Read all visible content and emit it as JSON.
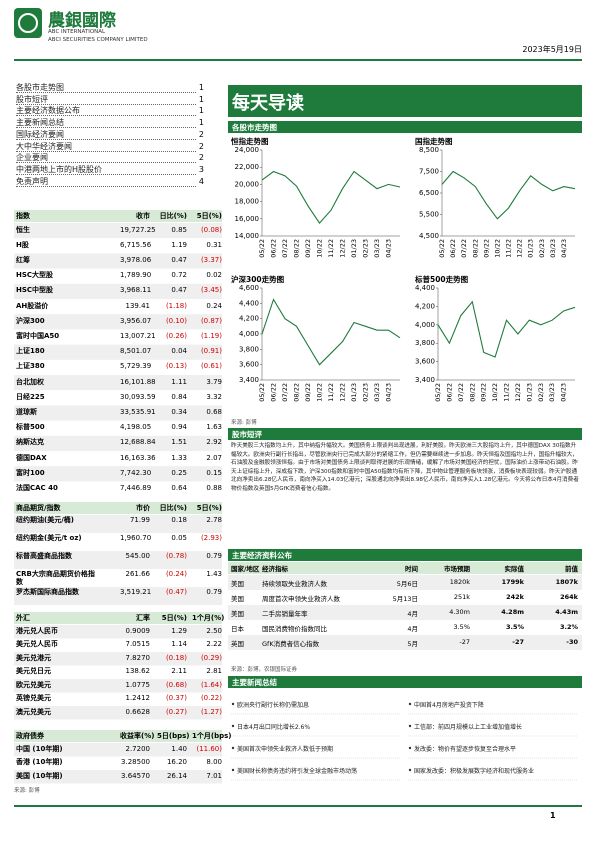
{
  "header": {
    "brand": "農銀國際",
    "brand_en1": "ABC INTERNATIONAL",
    "brand_en2": "ABCI SECURITIES COMPANY LIMITED",
    "date": "2023年5月19日"
  },
  "toc": [
    {
      "title": "各股市走势图",
      "page": 1
    },
    {
      "title": "股市短评",
      "page": 1
    },
    {
      "title": "主要经济数据公布",
      "page": 1
    },
    {
      "title": "主要新闻总结",
      "page": 1
    },
    {
      "title": "国际经济要闻",
      "page": 2
    },
    {
      "title": "大中华经济要闻",
      "page": 2
    },
    {
      "title": "企业要闻",
      "page": 2
    },
    {
      "title": "中港两地上市的H股股价",
      "page": 3
    },
    {
      "title": "免责声明",
      "page": 4
    }
  ],
  "tables": [
    {
      "columns": [
        "指数",
        "收市",
        "日比(%)",
        "5日(%)"
      ],
      "rows": [
        [
          "恒生",
          "19,727.25",
          "0.85",
          "(0.08)"
        ],
        [
          "H股",
          "6,715.56",
          "1.19",
          "0.31"
        ],
        [
          "红筹",
          "3,978.06",
          "0.47",
          "(3.37)"
        ],
        [
          "HSC大型股",
          "1,789.90",
          "0.72",
          "0.02"
        ],
        [
          "HSC中型股",
          "3,968.11",
          "0.47",
          "(3.45)"
        ],
        [
          "AH股溢价",
          "139.41",
          "(1.18)",
          "0.24"
        ],
        [
          "沪深300",
          "3,956.07",
          "(0.10)",
          "(0.87)"
        ],
        [
          "富时中国A50",
          "13,007.21",
          "(0.26)",
          "(1.19)"
        ],
        [
          "上证180",
          "8,501.07",
          "0.04",
          "(0.91)"
        ],
        [
          "上证380",
          "5,729.39",
          "(0.13)",
          "(0.61)"
        ],
        [
          "台北加权",
          "16,101.88",
          "1.11",
          "3.79"
        ],
        [
          "日经225",
          "30,093.59",
          "0.84",
          "3.32"
        ],
        [
          "道琼斯",
          "33,535.91",
          "0.34",
          "0.68"
        ],
        [
          "标普500",
          "4,198.05",
          "0.94",
          "1.63"
        ],
        [
          "纳斯达克",
          "12,688.84",
          "1.51",
          "2.92"
        ],
        [
          "德国DAX",
          "16,163.36",
          "1.33",
          "2.07"
        ],
        [
          "富时100",
          "7,742.30",
          "0.25",
          "0.15"
        ],
        [
          "法国CAC 40",
          "7,446.89",
          "0.64",
          "0.88"
        ]
      ]
    },
    {
      "columns": [
        "商品期货/指数",
        "市价",
        "日比(%)",
        "5日(%)"
      ],
      "rows": [
        [
          "纽约期油(美元/桶)",
          "71.99",
          "0.18",
          "2.78"
        ],
        [
          "纽约期金(美元/t oz)",
          "1,960.70",
          "0.05",
          "(2.93)"
        ],
        [
          "标普高盛商品指数",
          "545.00",
          "(0.78)",
          "0.79"
        ],
        [
          "CRB大宗商品期货价格指数",
          "261.66",
          "(0.24)",
          "1.43"
        ],
        [
          "罗杰斯国际商品指数",
          "3,519.21",
          "(0.47)",
          "0.79"
        ]
      ]
    },
    {
      "columns": [
        "外汇",
        "汇率",
        "5日(%)",
        "1个月(%)"
      ],
      "rows": [
        [
          "港元兑人民币",
          "0.9009",
          "1.29",
          "2.50"
        ],
        [
          "美元兑人民币",
          "7.0515",
          "1.14",
          "2.22"
        ],
        [
          "美元兑港元",
          "7.8270",
          "(0.18)",
          "(0.29)"
        ],
        [
          "美元兑日元",
          "138.62",
          "2.11",
          "2.81"
        ],
        [
          "欧元兑美元",
          "1.0775",
          "(0.68)",
          "(1.64)"
        ],
        [
          "英镑兑美元",
          "1.2412",
          "(0.37)",
          "(0.22)"
        ],
        [
          "澳元兑美元",
          "0.6628",
          "(0.27)",
          "(1.27)"
        ]
      ]
    },
    {
      "columns": [
        "政府债券",
        "收益率(%)",
        "5日(bps)",
        "1个月(bps)"
      ],
      "rows": [
        [
          "中国 (10年期)",
          "2.7200",
          "1.40",
          "(11.60)"
        ],
        [
          "香港 (10年期)",
          "3.28500",
          "16.20",
          "8.00"
        ],
        [
          "美国 (10年期)",
          "3.64570",
          "26.14",
          "7.01"
        ]
      ]
    }
  ],
  "source_left": "来源: 彭博",
  "banner": "每天导读",
  "charts_section": "各股市走势图",
  "chart_data": [
    {
      "type": "line",
      "title": "恒指走势图",
      "color": "#1e7b3c",
      "categories": [
        "05/22",
        "06/22",
        "07/22",
        "08/22",
        "09/22",
        "10/22",
        "11/22",
        "12/22",
        "01/23",
        "02/23",
        "03/23",
        "04/23",
        null
      ],
      "values": [
        20500,
        21500,
        21000,
        19800,
        17500,
        15500,
        17000,
        19500,
        21500,
        20500,
        19500,
        20000,
        19700
      ],
      "ylim": [
        14000,
        24000
      ],
      "yticks": [
        {
          "value": 14000,
          "label": "14,000"
        },
        {
          "value": 16000,
          "label": "16,000"
        },
        {
          "value": 18000,
          "label": "18,000"
        },
        {
          "value": 20000,
          "label": "20,000"
        },
        {
          "value": 22000,
          "label": "22,000"
        },
        {
          "value": 24000,
          "label": "24,000"
        }
      ]
    },
    {
      "type": "line",
      "title": "国指走势图",
      "color": "#1e7b3c",
      "categories": [
        "05/22",
        "06/22",
        "07/22",
        "08/22",
        "09/22",
        "10/22",
        "11/22",
        "12/22",
        "01/23",
        "02/23",
        "03/23",
        "04/23",
        null
      ],
      "values": [
        6900,
        7500,
        7200,
        6800,
        6000,
        5300,
        5800,
        6600,
        7300,
        6900,
        6600,
        6800,
        6700
      ],
      "ylim": [
        4500,
        8500
      ],
      "yticks": [
        {
          "value": 4500,
          "label": "4,500"
        },
        {
          "value": 5500,
          "label": "5,500"
        },
        {
          "value": 6500,
          "label": "6,500"
        },
        {
          "value": 7500,
          "label": "7,500"
        },
        {
          "value": 8500,
          "label": "8,500"
        }
      ]
    },
    {
      "type": "line",
      "title": "沪深300走势图",
      "color": "#1e7b3c",
      "categories": [
        "05/22",
        "06/22",
        "07/22",
        "08/22",
        "09/22",
        "10/22",
        "11/22",
        "12/22",
        "01/23",
        "02/23",
        "03/23",
        "04/23",
        null
      ],
      "values": [
        4000,
        4450,
        4200,
        4100,
        3850,
        3600,
        3750,
        3900,
        4150,
        4100,
        4050,
        4050,
        3950
      ],
      "ylim": [
        3400,
        4600
      ],
      "yticks": [
        {
          "value": 3400,
          "label": "3,400"
        },
        {
          "value": 3600,
          "label": "3,600"
        },
        {
          "value": 3800,
          "label": "3,800"
        },
        {
          "value": 4000,
          "label": "4,000"
        },
        {
          "value": 4200,
          "label": "4,200"
        },
        {
          "value": 4400,
          "label": "4,400"
        },
        {
          "value": 4600,
          "label": "4,600"
        }
      ]
    },
    {
      "type": "line",
      "title": "标普500走势图",
      "color": "#1e7b3c",
      "categories": [
        "05/22",
        "06/22",
        "07/22",
        "08/22",
        "09/22",
        "10/22",
        "11/22",
        "12/22",
        "01/23",
        "02/23",
        "03/23",
        "04/23",
        null
      ],
      "values": [
        4000,
        3800,
        4100,
        4250,
        3700,
        3650,
        4050,
        3900,
        4050,
        4000,
        4050,
        4150,
        4190
      ],
      "ylim": [
        3400,
        4400
      ],
      "yticks": [
        {
          "value": 3400,
          "label": "3,400"
        },
        {
          "value": 3600,
          "label": "3,600"
        },
        {
          "value": 3800,
          "label": "3,800"
        },
        {
          "value": 4000,
          "label": "4,000"
        },
        {
          "value": 4200,
          "label": "4,200"
        },
        {
          "value": 4400,
          "label": "4,400"
        }
      ]
    }
  ],
  "chart_source": "来源: 彭博",
  "commentary": {
    "title": "股市短评",
    "text": "昨天美股三大指数均上升，其中纳指升幅较大。美国债务上限谈判出现进展，利好美股。昨天欧洲三大股指均上升，其中德国DAX 30指数升幅较大。欧洲央行副行长指出，尽管欧洲央行已完成大部分的紧缩工作，但仍需要继续进一步加息。昨天恒指及国指均上升，国指升幅较大，石油股及金融股领涨恒指。由于市场对美国债务上限谈判取得进展的乐观情绪，缓解了市场对美国经济的担忧，国际油价上涨带动石油股。昨天上证综指上升，深成指下跌，沪深300指数和富时中国A50指数均有所下降，其中物业管理服务板块领涨，消费板块表现较弱。昨天沪股通北向净卖出6.28亿人民币，南向净买入14.03亿港元；深股通北向净卖出8.98亿人民币，南向净买入1.28亿港元。今天将公布日本4月消费者物价指数及英国5月GfK消费者信心指数。"
  },
  "econ": {
    "title": "主要经济资料公布",
    "columns": [
      "国家/地区",
      "经济指标",
      "时间",
      "市场预期",
      "实际值",
      "前值"
    ],
    "rows": [
      [
        "美国",
        "持续领取失业救济人数",
        "5月6日",
        "1820k",
        "1799k",
        "1807k"
      ],
      [
        "美国",
        "周度首次申领失业救济人数",
        "5月13日",
        "251k",
        "242k",
        "264k"
      ],
      [
        "美国",
        "二手房销量年率",
        "4月",
        "4.30m",
        "4.28m",
        "4.43m"
      ],
      [
        "日本",
        "国民消费物价指数同比",
        "4月",
        "3.5%",
        "3.5%",
        "3.2%"
      ],
      [
        "英国",
        "GfK消费者信心指数",
        "5月",
        "-27",
        "-27",
        "-30"
      ]
    ],
    "source": "来源：彭博，农银国际证券"
  },
  "news": {
    "title": "主要新闻总结",
    "items": [
      "欧洲央行副行长称仍需加息",
      "中国首4月房地产投资下降",
      "日本4月出口同比增长2.6%",
      "工信部：前四月规模以上工业增加值增长",
      "美国首次申领失业救济人数低于预期",
      "发改委：物价有望逐步恢复至合理水平",
      "美国财长称债务违约将引发全球金融市场动荡",
      "国家发改委：积极发展数字经济和现代服务业"
    ]
  },
  "page_number": 1
}
